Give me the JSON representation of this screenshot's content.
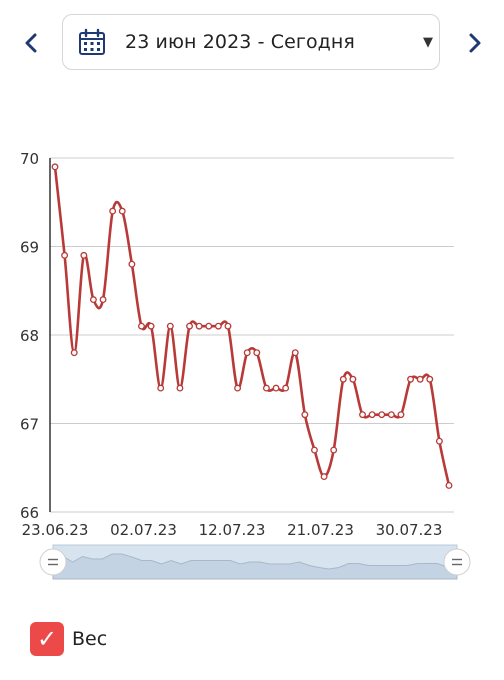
{
  "date_range": {
    "label": "23 июн 2023 - Сегодня"
  },
  "legend": {
    "series_label": "Вес",
    "checked": true
  },
  "colors": {
    "line": "#b83a38",
    "grid": "#cccccc",
    "nav": "#1f3a72",
    "checkbox": "#ec4a48",
    "slider_fill": "#d7e3ef"
  },
  "chart_data": {
    "type": "line",
    "title": "",
    "xlabel": "",
    "ylabel": "",
    "ylim": [
      66,
      70
    ],
    "yticks": [
      "70",
      "69",
      "68",
      "67",
      "66"
    ],
    "xticks": [
      "23.06.23",
      "02.07.23",
      "12.07.23",
      "21.07.23",
      "30.07.23"
    ],
    "series": [
      {
        "values": [
          69.9,
          68.9,
          67.8,
          68.9,
          68.4,
          68.4,
          69.4,
          69.4,
          68.8,
          68.1,
          68.1,
          67.4,
          68.1,
          67.4,
          68.1,
          68.1,
          68.1,
          68.1,
          68.1,
          67.4,
          67.8,
          67.8,
          67.4,
          67.4,
          67.4,
          67.8,
          67.1,
          66.7,
          66.4,
          66.7,
          67.5,
          67.5,
          67.1,
          67.1,
          67.1,
          67.1,
          67.1,
          67.5,
          67.5,
          67.5,
          66.8,
          66.3
        ]
      }
    ]
  }
}
